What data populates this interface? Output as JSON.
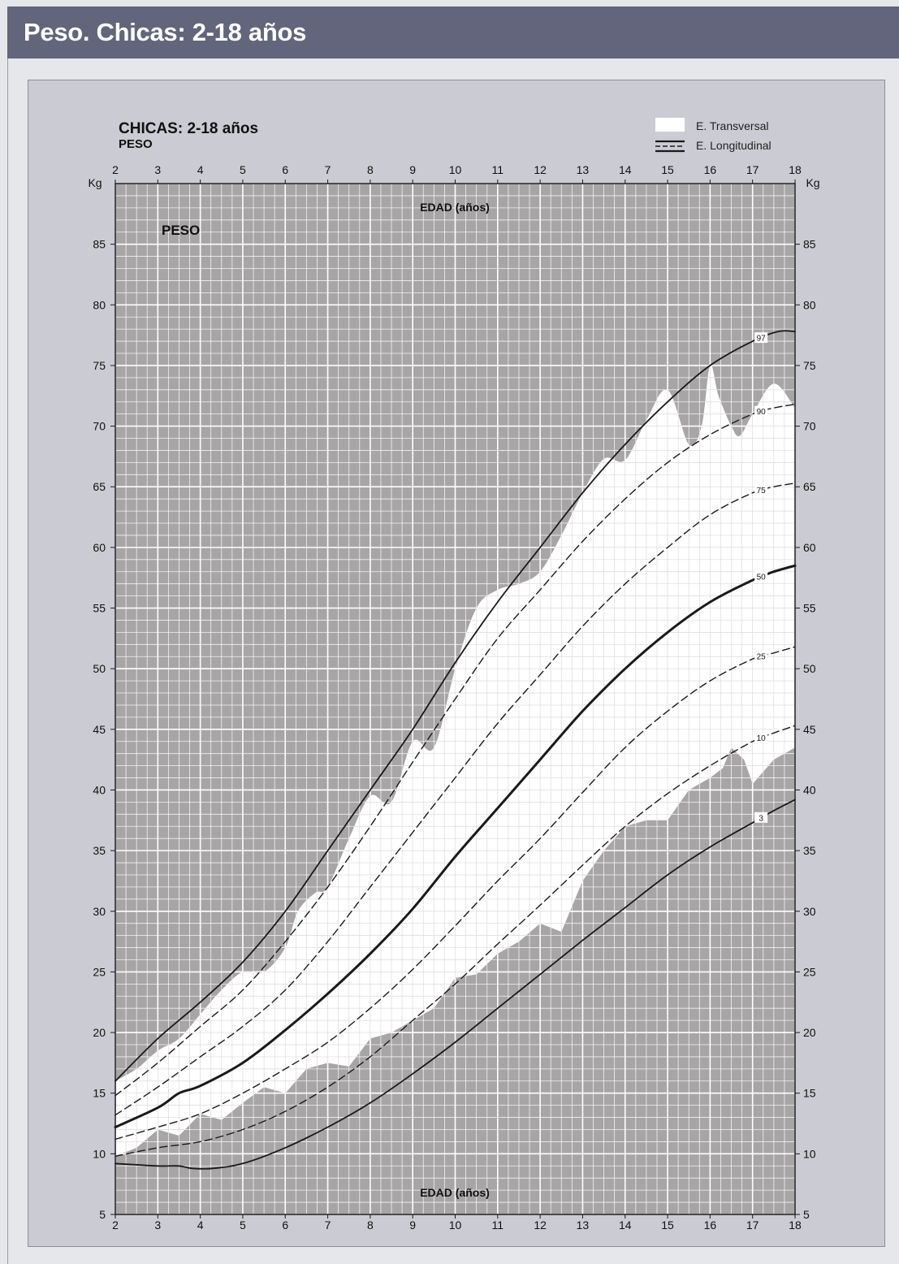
{
  "header": {
    "title": "Peso. Chicas: 2-18 años"
  },
  "chart_data": {
    "type": "line",
    "title": "CHICAS: 2-18 años",
    "subtitle": "PESO",
    "inner_label": "PESO",
    "xlabel": "EDAD (años)",
    "ylabel": "Kg",
    "xlim": [
      2,
      18
    ],
    "ylim": [
      5,
      90
    ],
    "x_ticks": [
      2,
      3,
      4,
      5,
      6,
      7,
      8,
      9,
      10,
      11,
      12,
      13,
      14,
      15,
      16,
      17,
      18
    ],
    "y_ticks": [
      5,
      10,
      15,
      20,
      25,
      30,
      35,
      40,
      45,
      50,
      55,
      60,
      65,
      70,
      75,
      80,
      85
    ],
    "grid": true,
    "legend": {
      "position": "top-right",
      "items": [
        {
          "label": "E. Transversal",
          "style": "white-band"
        },
        {
          "label": "E. Longitudinal",
          "style": "solid-and-dashed-lines"
        }
      ]
    },
    "colors": {
      "background": "#a8a5a6",
      "band": "#ffffff",
      "grid": "#ffffff",
      "line": "#1a1a1a"
    },
    "band": {
      "name": "E. Transversal",
      "upper": [
        [
          2,
          16
        ],
        [
          2.5,
          17
        ],
        [
          3,
          18.5
        ],
        [
          3.5,
          19.5
        ],
        [
          4,
          21.5
        ],
        [
          4.5,
          23.5
        ],
        [
          5,
          25
        ],
        [
          5.5,
          25
        ],
        [
          6,
          27
        ],
        [
          6.3,
          30
        ],
        [
          6.7,
          31.5
        ],
        [
          7,
          32
        ],
        [
          7.5,
          36
        ],
        [
          8,
          39.5
        ],
        [
          8.5,
          39
        ],
        [
          9,
          44
        ],
        [
          9.5,
          43.5
        ],
        [
          10,
          50
        ],
        [
          10.5,
          55
        ],
        [
          11,
          56.5
        ],
        [
          11.5,
          57
        ],
        [
          12,
          58
        ],
        [
          12.5,
          61
        ],
        [
          13,
          64.5
        ],
        [
          13.5,
          67.3
        ],
        [
          14,
          67.2
        ],
        [
          14.5,
          70.5
        ],
        [
          15,
          73
        ],
        [
          15.5,
          68.5
        ],
        [
          15.8,
          70
        ],
        [
          16,
          75
        ],
        [
          16.2,
          72.5
        ],
        [
          16.5,
          70
        ],
        [
          16.7,
          69.2
        ],
        [
          17,
          71
        ],
        [
          17.5,
          73.5
        ],
        [
          18,
          71.5
        ]
      ],
      "lower": [
        [
          2,
          9.8
        ],
        [
          2.5,
          10.5
        ],
        [
          3,
          12
        ],
        [
          3.5,
          11.5
        ],
        [
          4,
          13.3
        ],
        [
          4.5,
          12.8
        ],
        [
          5,
          14.2
        ],
        [
          5.5,
          15.5
        ],
        [
          6,
          15
        ],
        [
          6.5,
          17
        ],
        [
          7,
          17.5
        ],
        [
          7.5,
          17.2
        ],
        [
          8,
          19.5
        ],
        [
          8.5,
          20
        ],
        [
          9,
          21
        ],
        [
          9.5,
          22
        ],
        [
          10,
          24.5
        ],
        [
          10.5,
          24.8
        ],
        [
          11,
          26.5
        ],
        [
          11.5,
          27.5
        ],
        [
          12,
          29
        ],
        [
          12.5,
          28.3
        ],
        [
          13,
          32.5
        ],
        [
          13.5,
          35
        ],
        [
          14,
          37
        ],
        [
          14.5,
          37.5
        ],
        [
          15,
          37.5
        ],
        [
          15.5,
          40
        ],
        [
          16,
          41
        ],
        [
          16.3,
          41.8
        ],
        [
          16.5,
          43.5
        ],
        [
          16.8,
          42.5
        ],
        [
          17,
          40.5
        ],
        [
          17.5,
          42.5
        ],
        [
          18,
          43.5
        ]
      ]
    },
    "series": [
      {
        "name": "97",
        "style": "solid",
        "weight": "normal",
        "label_x": 17.2,
        "points": [
          [
            2,
            16
          ],
          [
            3,
            19.5
          ],
          [
            4,
            22.5
          ],
          [
            5,
            25.8
          ],
          [
            6,
            30
          ],
          [
            7,
            35
          ],
          [
            8,
            40
          ],
          [
            9,
            45
          ],
          [
            10,
            50.5
          ],
          [
            11,
            55.5
          ],
          [
            12,
            60
          ],
          [
            13,
            64.5
          ],
          [
            14,
            68.5
          ],
          [
            15,
            72
          ],
          [
            16,
            75
          ],
          [
            17,
            77
          ],
          [
            17.6,
            77.8
          ],
          [
            18,
            77.8
          ]
        ]
      },
      {
        "name": "90",
        "style": "dashed",
        "weight": "normal",
        "label_x": 17.2,
        "points": [
          [
            2,
            14.8
          ],
          [
            3,
            17.5
          ],
          [
            4,
            20.5
          ],
          [
            5,
            23.5
          ],
          [
            6,
            27.5
          ],
          [
            7,
            32
          ],
          [
            8,
            37
          ],
          [
            9,
            42.3
          ],
          [
            10,
            47.5
          ],
          [
            11,
            52.5
          ],
          [
            12,
            56.5
          ],
          [
            13,
            60.5
          ],
          [
            14,
            64
          ],
          [
            15,
            67
          ],
          [
            16,
            69.3
          ],
          [
            17,
            71
          ],
          [
            17.5,
            71.5
          ],
          [
            18,
            71.8
          ]
        ]
      },
      {
        "name": "75",
        "style": "dashed",
        "weight": "normal",
        "label_x": 17.2,
        "points": [
          [
            2,
            13.2
          ],
          [
            3,
            15.5
          ],
          [
            4,
            18
          ],
          [
            5,
            20.5
          ],
          [
            6,
            23.5
          ],
          [
            7,
            27.5
          ],
          [
            8,
            32
          ],
          [
            9,
            36.5
          ],
          [
            10,
            41
          ],
          [
            11,
            45.5
          ],
          [
            12,
            49.5
          ],
          [
            13,
            53.5
          ],
          [
            14,
            57
          ],
          [
            15,
            60
          ],
          [
            16,
            62.7
          ],
          [
            17,
            64.5
          ],
          [
            17.5,
            65
          ],
          [
            18,
            65.3
          ]
        ]
      },
      {
        "name": "50",
        "style": "solid",
        "weight": "bold",
        "label_x": 17.2,
        "points": [
          [
            2,
            12.2
          ],
          [
            3,
            13.8
          ],
          [
            3.5,
            15
          ],
          [
            4,
            15.6
          ],
          [
            5,
            17.5
          ],
          [
            6,
            20.2
          ],
          [
            7,
            23.2
          ],
          [
            8,
            26.5
          ],
          [
            9,
            30.2
          ],
          [
            10,
            34.5
          ],
          [
            11,
            38.5
          ],
          [
            12,
            42.5
          ],
          [
            13,
            46.5
          ],
          [
            14,
            50
          ],
          [
            15,
            53
          ],
          [
            16,
            55.5
          ],
          [
            17,
            57.3
          ],
          [
            17.5,
            58
          ],
          [
            18,
            58.5
          ]
        ]
      },
      {
        "name": "25",
        "style": "dashed",
        "weight": "normal",
        "label_x": 17.2,
        "points": [
          [
            2,
            11.2
          ],
          [
            3,
            12.2
          ],
          [
            4,
            13.3
          ],
          [
            5,
            15
          ],
          [
            6,
            17
          ],
          [
            7,
            19.2
          ],
          [
            8,
            22
          ],
          [
            9,
            25.2
          ],
          [
            10,
            28.8
          ],
          [
            11,
            32.5
          ],
          [
            12,
            36
          ],
          [
            13,
            39.8
          ],
          [
            14,
            43.5
          ],
          [
            15,
            46.5
          ],
          [
            16,
            49
          ],
          [
            17,
            50.8
          ],
          [
            17.5,
            51.3
          ],
          [
            18,
            51.8
          ]
        ]
      },
      {
        "name": "10",
        "style": "dashed",
        "weight": "normal",
        "label_x": 17.2,
        "points": [
          [
            2,
            9.8
          ],
          [
            3,
            10.5
          ],
          [
            4,
            11
          ],
          [
            5,
            12
          ],
          [
            6,
            13.5
          ],
          [
            7,
            15.5
          ],
          [
            8,
            18
          ],
          [
            9,
            21
          ],
          [
            10,
            24
          ],
          [
            11,
            27.3
          ],
          [
            12,
            30.5
          ],
          [
            13,
            33.8
          ],
          [
            14,
            37
          ],
          [
            15,
            39.7
          ],
          [
            16,
            42
          ],
          [
            17,
            44
          ],
          [
            17.5,
            44.7
          ],
          [
            18,
            45.3
          ]
        ]
      },
      {
        "name": "3",
        "style": "solid",
        "weight": "normal",
        "label_x": 17.2,
        "points": [
          [
            2,
            9.2
          ],
          [
            3,
            9
          ],
          [
            3.5,
            9
          ],
          [
            3.8,
            8.8
          ],
          [
            4.3,
            8.8
          ],
          [
            5,
            9.2
          ],
          [
            6,
            10.5
          ],
          [
            7,
            12.2
          ],
          [
            8,
            14.2
          ],
          [
            9,
            16.6
          ],
          [
            10,
            19.2
          ],
          [
            11,
            22
          ],
          [
            12,
            24.8
          ],
          [
            13,
            27.6
          ],
          [
            14,
            30.3
          ],
          [
            15,
            33
          ],
          [
            16,
            35.3
          ],
          [
            17,
            37.3
          ],
          [
            17.5,
            38.3
          ],
          [
            18,
            39.2
          ]
        ]
      }
    ]
  }
}
